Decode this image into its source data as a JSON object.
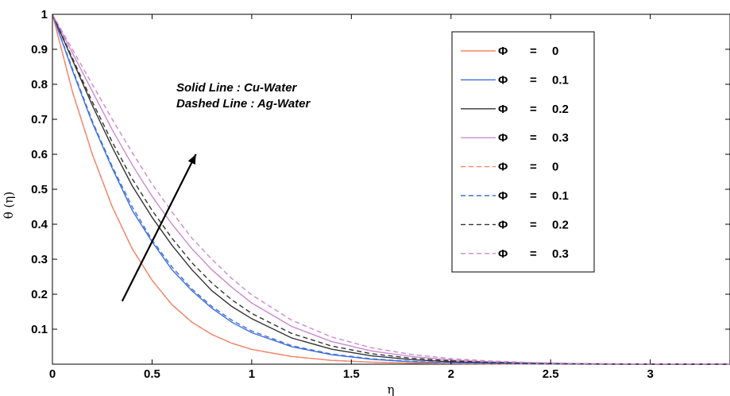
{
  "chart_data": {
    "type": "line",
    "title": "",
    "xlabel": "η",
    "ylabel": "θ (η)",
    "xlim": [
      0,
      3.4
    ],
    "ylim": [
      0,
      1
    ],
    "xticks": [
      0,
      0.5,
      1,
      1.5,
      2,
      2.5,
      3
    ],
    "xtick_labels": [
      "0",
      "0.5",
      "1",
      "1.5",
      "2",
      "2.5",
      "3"
    ],
    "yticks": [
      0.1,
      0.2,
      0.3,
      0.4,
      0.5,
      0.6,
      0.7,
      0.8,
      0.9,
      1
    ],
    "ytick_labels": [
      "0.1",
      "0.2",
      "0.3",
      "0.4",
      "0.5",
      "0.6",
      "0.7",
      "0.8",
      "0.9",
      "1"
    ],
    "grid": false,
    "legend_position": "top-right",
    "x": [
      0,
      0.1,
      0.2,
      0.3,
      0.4,
      0.5,
      0.6,
      0.7,
      0.8,
      0.9,
      1.0,
      1.2,
      1.4,
      1.6,
      1.8,
      2.0,
      2.2,
      2.4,
      2.6,
      2.8,
      3.0,
      3.2,
      3.4
    ],
    "series": [
      {
        "name": "Φ = 0",
        "color": "#f4856b",
        "dash": "solid",
        "values": [
          1.0,
          0.78,
          0.6,
          0.45,
          0.33,
          0.24,
          0.17,
          0.12,
          0.085,
          0.06,
          0.042,
          0.022,
          0.011,
          0.006,
          0.003,
          0.0015,
          0.0008,
          0.0004,
          0.0002,
          0.0001,
          0.0,
          0.0,
          0.0
        ]
      },
      {
        "name": "Φ = 0.1",
        "color": "#3f6fdc",
        "dash": "solid",
        "values": [
          1.0,
          0.84,
          0.69,
          0.56,
          0.44,
          0.35,
          0.27,
          0.21,
          0.16,
          0.12,
          0.09,
          0.05,
          0.027,
          0.014,
          0.007,
          0.0035,
          0.0018,
          0.0009,
          0.0004,
          0.0002,
          0.0001,
          0.0,
          0.0
        ]
      },
      {
        "name": "Φ = 0.2",
        "color": "#333333",
        "dash": "solid",
        "values": [
          1.0,
          0.87,
          0.74,
          0.62,
          0.51,
          0.42,
          0.34,
          0.27,
          0.21,
          0.165,
          0.13,
          0.075,
          0.043,
          0.024,
          0.013,
          0.007,
          0.0037,
          0.0019,
          0.001,
          0.0005,
          0.0002,
          0.0001,
          0.0
        ]
      },
      {
        "name": "Φ = 0.3",
        "color": "#cc88d2",
        "dash": "solid",
        "values": [
          1.0,
          0.89,
          0.78,
          0.67,
          0.57,
          0.48,
          0.4,
          0.33,
          0.27,
          0.22,
          0.175,
          0.108,
          0.065,
          0.038,
          0.022,
          0.012,
          0.0066,
          0.0035,
          0.0018,
          0.0009,
          0.0004,
          0.0002,
          0.0
        ]
      },
      {
        "name": "Φ = 0",
        "color": "#f4856b",
        "dash": "dashed",
        "values": [
          1.0,
          0.78,
          0.6,
          0.45,
          0.33,
          0.24,
          0.17,
          0.12,
          0.085,
          0.06,
          0.042,
          0.022,
          0.011,
          0.006,
          0.003,
          0.0015,
          0.0008,
          0.0004,
          0.0002,
          0.0001,
          0.0,
          0.0,
          0.0
        ]
      },
      {
        "name": "Φ = 0.1",
        "color": "#3f6fdc",
        "dash": "dashed",
        "values": [
          1.0,
          0.845,
          0.695,
          0.565,
          0.45,
          0.355,
          0.278,
          0.215,
          0.165,
          0.126,
          0.095,
          0.053,
          0.029,
          0.0155,
          0.008,
          0.004,
          0.002,
          0.001,
          0.0005,
          0.0002,
          0.0001,
          0.0,
          0.0
        ]
      },
      {
        "name": "Φ = 0.2",
        "color": "#333333",
        "dash": "dashed",
        "values": [
          1.0,
          0.875,
          0.75,
          0.635,
          0.53,
          0.44,
          0.36,
          0.29,
          0.232,
          0.184,
          0.145,
          0.088,
          0.052,
          0.03,
          0.017,
          0.0095,
          0.005,
          0.0027,
          0.0014,
          0.0007,
          0.0003,
          0.0001,
          0.0
        ]
      },
      {
        "name": "Φ = 0.3",
        "color": "#cc88d2",
        "dash": "dashed",
        "values": [
          1.0,
          0.9,
          0.8,
          0.7,
          0.605,
          0.515,
          0.435,
          0.36,
          0.3,
          0.245,
          0.198,
          0.126,
          0.078,
          0.047,
          0.028,
          0.016,
          0.009,
          0.005,
          0.0026,
          0.0013,
          0.0006,
          0.0003,
          0.0
        ]
      }
    ],
    "legend": [
      {
        "symbol": "Φ",
        "eq": "=",
        "value": "0"
      },
      {
        "symbol": "Φ",
        "eq": "=",
        "value": "0.1"
      },
      {
        "symbol": "Φ",
        "eq": "=",
        "value": "0.2"
      },
      {
        "symbol": "Φ",
        "eq": "=",
        "value": "0.3"
      },
      {
        "symbol": "Φ",
        "eq": "=",
        "value": "0"
      },
      {
        "symbol": "Φ",
        "eq": "=",
        "value": "0.1"
      },
      {
        "symbol": "Φ",
        "eq": "=",
        "value": "0.2"
      },
      {
        "symbol": "Φ",
        "eq": "=",
        "value": "0.3"
      }
    ],
    "annotations": [
      {
        "text": "Solid Line : Cu-Water"
      },
      {
        "text": "Dashed Line : Ag-Water"
      }
    ],
    "arrow": {
      "from": [
        0.35,
        0.18
      ],
      "to": [
        0.72,
        0.6
      ]
    }
  }
}
